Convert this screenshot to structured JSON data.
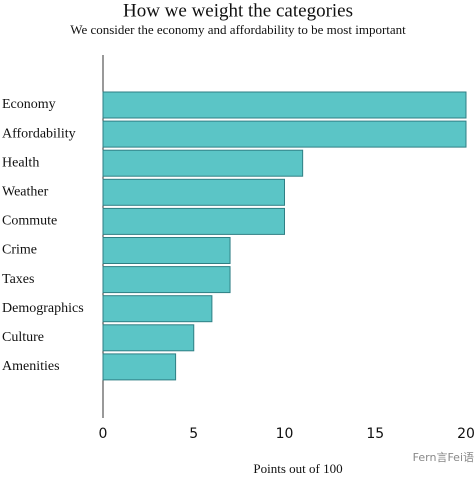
{
  "chart_data": {
    "type": "barh",
    "title": "How we weight the categories",
    "subtitle": "We consider the economy and affordability to be most important",
    "xlabel": "Points out of 100",
    "categories": [
      "Economy",
      "Affordability",
      "Health",
      "Weather",
      "Commute",
      "Crime",
      "Taxes",
      "Demographics",
      "Culture",
      "Amenities"
    ],
    "values": [
      20,
      20,
      11,
      10,
      10,
      7,
      7,
      6,
      5,
      4
    ],
    "color": "#5bc5c6",
    "xlim": [
      0,
      20
    ],
    "xticks": [
      0,
      5,
      10,
      15,
      20
    ],
    "grid": false
  },
  "watermark": "Fern言Fei语"
}
